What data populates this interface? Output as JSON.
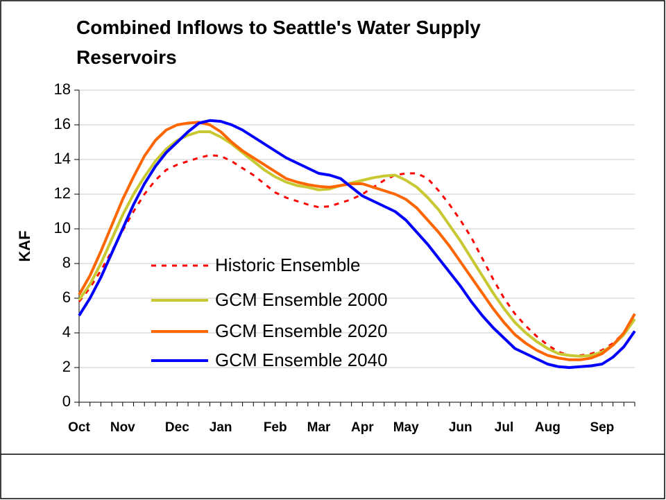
{
  "chart_data": {
    "type": "line",
    "title": "Combined Inflows to Seattle's Water Supply Reservoirs",
    "y_label": "KAF",
    "categories": [
      "Oct",
      null,
      null,
      null,
      "Nov",
      null,
      null,
      null,
      null,
      "Dec",
      null,
      null,
      null,
      "Jan",
      null,
      null,
      null,
      null,
      "Feb",
      null,
      null,
      null,
      "Mar",
      null,
      null,
      null,
      "Apr",
      null,
      null,
      null,
      "May",
      null,
      null,
      null,
      null,
      "Jun",
      null,
      null,
      null,
      "Jul",
      null,
      null,
      null,
      "Aug",
      null,
      null,
      null,
      null,
      "Sep",
      null,
      null,
      null
    ],
    "series": [
      {
        "name": "Historic Ensemble",
        "color": "#ff0000",
        "dashed": true,
        "values": [
          5.8,
          6.6,
          7.6,
          8.7,
          9.9,
          11.0,
          12.0,
          12.8,
          13.4,
          13.7,
          13.9,
          14.1,
          14.25,
          14.2,
          13.9,
          13.5,
          13.1,
          12.6,
          12.1,
          11.8,
          11.6,
          11.4,
          11.25,
          11.3,
          11.5,
          11.7,
          12.0,
          12.4,
          12.8,
          13.1,
          13.2,
          13.2,
          12.9,
          12.2,
          11.4,
          10.5,
          9.5,
          8.3,
          7.1,
          6.0,
          5.1,
          4.4,
          3.8,
          3.3,
          2.9,
          2.7,
          2.7,
          2.8,
          3.0,
          3.4,
          4.0,
          4.8
        ]
      },
      {
        "name": "GCM Ensemble 2000",
        "color": "#c8c832",
        "dashed": false,
        "values": [
          5.9,
          6.8,
          8.0,
          9.4,
          10.8,
          12.0,
          13.0,
          13.9,
          14.6,
          15.1,
          15.4,
          15.6,
          15.6,
          15.3,
          14.9,
          14.4,
          13.9,
          13.4,
          13.0,
          12.7,
          12.5,
          12.4,
          12.25,
          12.3,
          12.5,
          12.65,
          12.8,
          12.95,
          13.05,
          13.1,
          12.8,
          12.4,
          11.8,
          11.1,
          10.2,
          9.3,
          8.3,
          7.3,
          6.3,
          5.4,
          4.6,
          4.0,
          3.5,
          3.1,
          2.8,
          2.7,
          2.65,
          2.7,
          2.9,
          3.3,
          3.9,
          4.8
        ]
      },
      {
        "name": "GCM Ensemble 2020",
        "color": "#ff6600",
        "dashed": false,
        "values": [
          6.2,
          7.3,
          8.7,
          10.2,
          11.7,
          13.0,
          14.2,
          15.1,
          15.7,
          16.0,
          16.1,
          16.15,
          16.0,
          15.6,
          15.0,
          14.5,
          14.1,
          13.7,
          13.3,
          12.9,
          12.7,
          12.55,
          12.45,
          12.4,
          12.5,
          12.6,
          12.6,
          12.4,
          12.2,
          12.0,
          11.7,
          11.2,
          10.5,
          9.8,
          9.0,
          8.1,
          7.2,
          6.3,
          5.4,
          4.6,
          3.9,
          3.4,
          3.0,
          2.7,
          2.55,
          2.45,
          2.45,
          2.55,
          2.8,
          3.3,
          4.0,
          5.1
        ]
      },
      {
        "name": "GCM Ensemble 2040",
        "color": "#0000ff",
        "dashed": false,
        "values": [
          5.0,
          6.0,
          7.2,
          8.6,
          10.0,
          11.4,
          12.6,
          13.6,
          14.4,
          15.0,
          15.6,
          16.1,
          16.25,
          16.2,
          16.0,
          15.7,
          15.3,
          14.9,
          14.5,
          14.1,
          13.8,
          13.5,
          13.2,
          13.1,
          12.9,
          12.4,
          11.9,
          11.6,
          11.3,
          11.0,
          10.5,
          9.8,
          9.1,
          8.3,
          7.5,
          6.7,
          5.8,
          5.0,
          4.3,
          3.7,
          3.1,
          2.8,
          2.5,
          2.2,
          2.05,
          2.0,
          2.05,
          2.1,
          2.2,
          2.6,
          3.2,
          4.1
        ]
      }
    ],
    "ylim": [
      0,
      18
    ],
    "yticks": [
      0,
      2,
      4,
      6,
      8,
      10,
      12,
      14,
      16,
      18
    ],
    "grid": true,
    "legend": "left"
  }
}
